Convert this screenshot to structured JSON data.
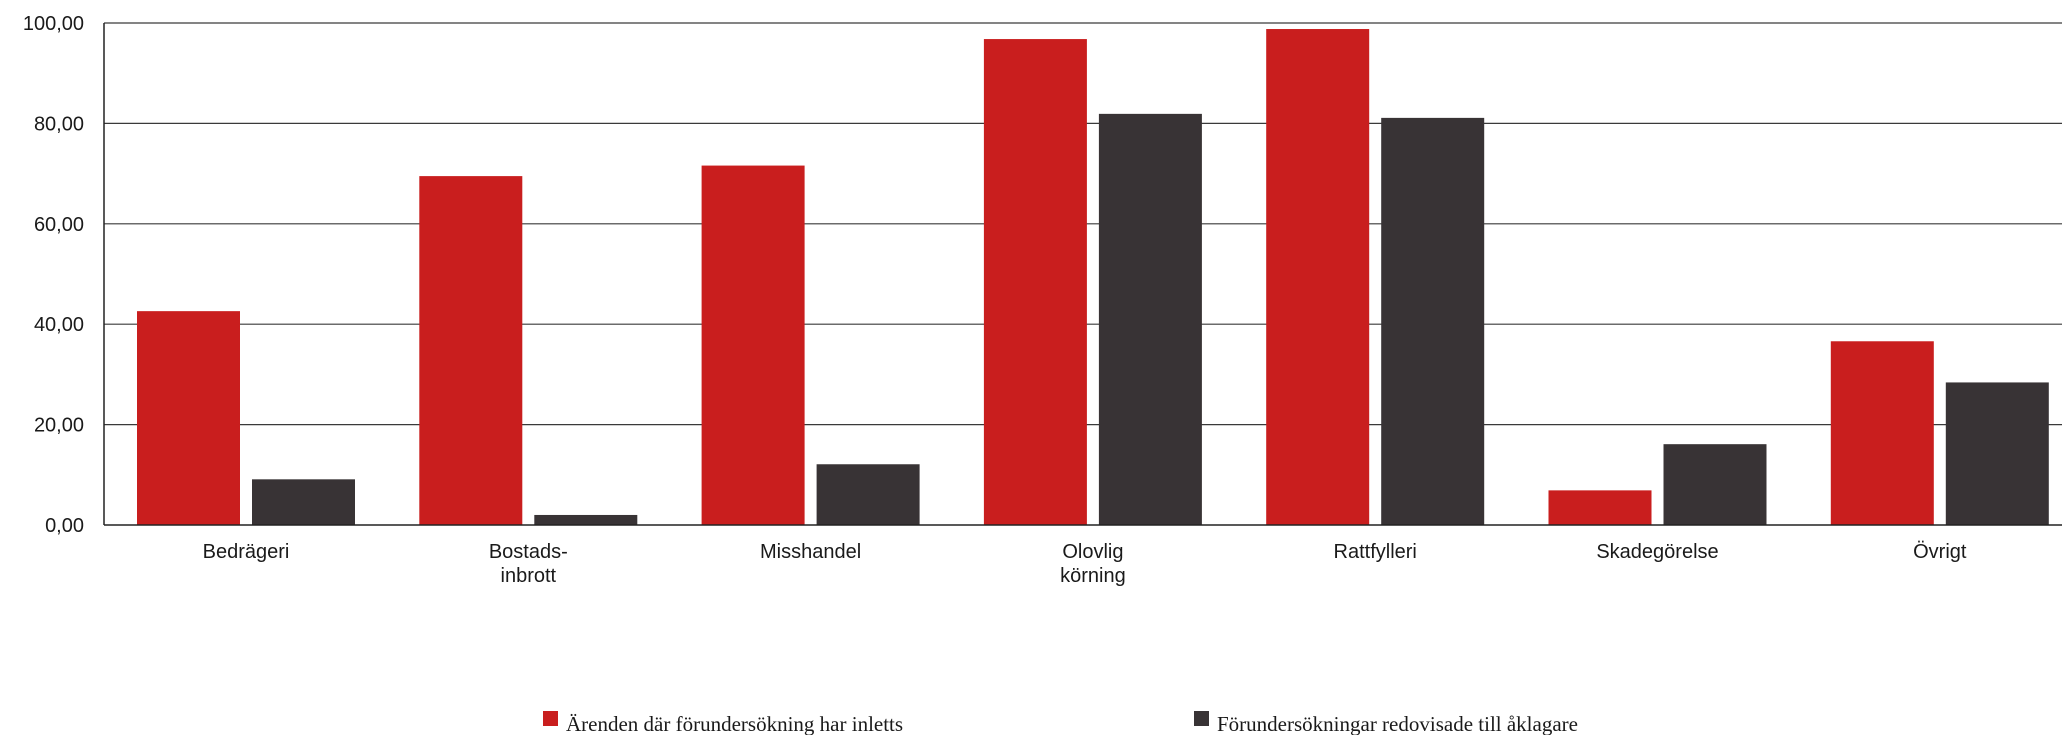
{
  "chart_data": {
    "type": "bar",
    "categories": [
      [
        "Bedrägeri"
      ],
      [
        "Bostads-",
        "inbrott"
      ],
      [
        "Misshandel"
      ],
      [
        "Olovlig",
        "körning"
      ],
      [
        "Rattfylleri"
      ],
      [
        "Skadegörelse"
      ],
      [
        "Övrigt"
      ]
    ],
    "series": [
      {
        "name": "Ärenden där förundersökning har inletts",
        "color": "#c91e1e",
        "values": [
          42.6,
          69.5,
          71.6,
          96.8,
          98.8,
          6.9,
          36.6
        ]
      },
      {
        "name": "Förundersökningar redovisade till åklagare",
        "color": "#383335",
        "values": [
          9.1,
          2.0,
          12.1,
          81.9,
          81.1,
          16.1,
          28.4
        ]
      }
    ],
    "yticks": [
      "0,00",
      "20,00",
      "40,00",
      "60,00",
      "80,00",
      "100,00"
    ],
    "ylim": [
      0,
      100
    ],
    "grid": true,
    "legend_position": "bottom",
    "title": "",
    "xlabel": "",
    "ylabel": ""
  }
}
